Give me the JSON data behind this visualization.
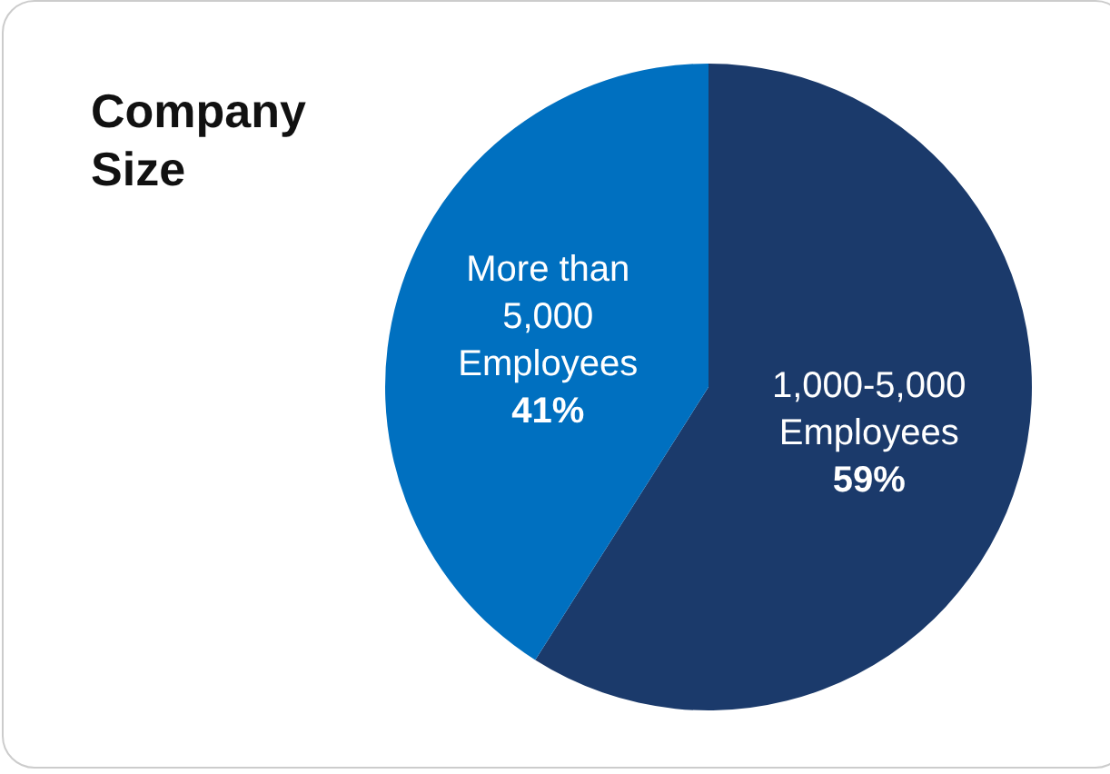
{
  "chart_data": {
    "type": "pie",
    "title": "Company Size",
    "categories": [
      "1,000-5,000 Employees",
      "More than 5,000 Employees"
    ],
    "values": [
      59,
      41
    ],
    "colors": [
      "#1b3a6b",
      "#0070c0"
    ],
    "value_labels": [
      "59%",
      "41%"
    ],
    "legend": false
  }
}
